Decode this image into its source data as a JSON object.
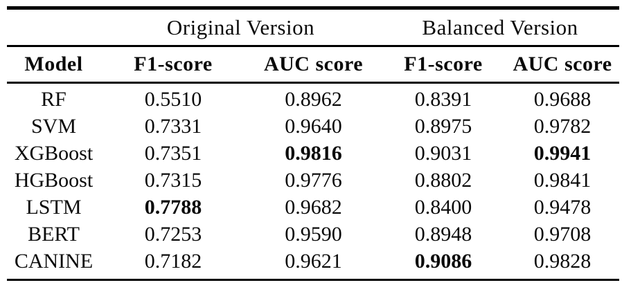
{
  "table": {
    "group_headers": [
      {
        "label": "Original Version"
      },
      {
        "label": "Balanced Version"
      }
    ],
    "column_headers": {
      "model": "Model",
      "f1_orig": "F1-score",
      "auc_orig": "AUC score",
      "f1_bal": "F1-score",
      "auc_bal": "AUC score"
    },
    "rows": [
      {
        "model": "RF",
        "f1_orig": "0.5510",
        "auc_orig": "0.8962",
        "f1_bal": "0.8391",
        "auc_bal": "0.9688",
        "bold_cells": []
      },
      {
        "model": "SVM",
        "f1_orig": "0.7331",
        "auc_orig": "0.9640",
        "f1_bal": "0.8975",
        "auc_bal": "0.9782",
        "bold_cells": []
      },
      {
        "model": "XGBoost",
        "f1_orig": "0.7351",
        "auc_orig": "0.9816",
        "f1_bal": "0.9031",
        "auc_bal": "0.9941",
        "bold_cells": [
          "auc_orig",
          "auc_bal"
        ]
      },
      {
        "model": "HGBoost",
        "f1_orig": "0.7315",
        "auc_orig": "0.9776",
        "f1_bal": "0.8802",
        "auc_bal": "0.9841",
        "bold_cells": []
      },
      {
        "model": "LSTM",
        "f1_orig": "0.7788",
        "auc_orig": "0.9682",
        "f1_bal": "0.8400",
        "auc_bal": "0.9478",
        "bold_cells": [
          "f1_orig"
        ]
      },
      {
        "model": "BERT",
        "f1_orig": "0.7253",
        "auc_orig": "0.9590",
        "f1_bal": "0.8948",
        "auc_bal": "0.9708",
        "bold_cells": []
      },
      {
        "model": "CANINE",
        "f1_orig": "0.7182",
        "auc_orig": "0.9621",
        "f1_bal": "0.9086",
        "auc_bal": "0.9828",
        "bold_cells": [
          "f1_bal"
        ]
      }
    ],
    "colors": {
      "text": "#0a0a0a",
      "rule": "#000000",
      "background": "#ffffff"
    }
  }
}
